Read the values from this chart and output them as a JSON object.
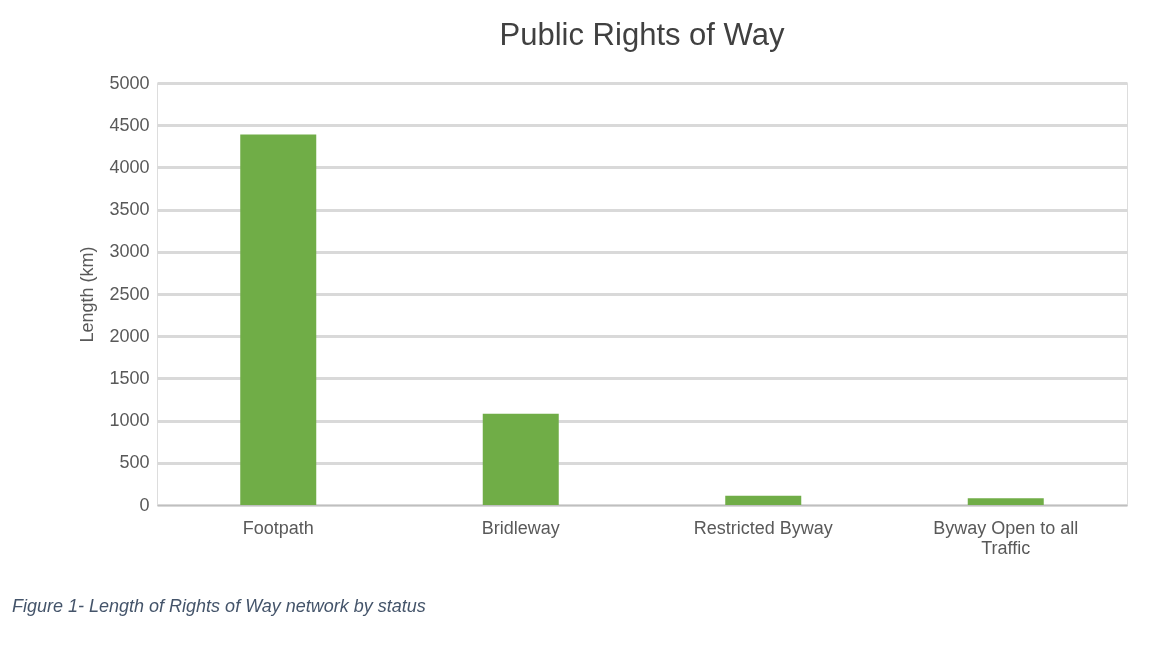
{
  "chart_data": {
    "type": "bar",
    "title": "Public Rights of Way",
    "ylabel": "Length (km)",
    "categories": [
      "Footpath",
      "Bridleway",
      "Restricted Byway",
      "Byway Open to all Traffic"
    ],
    "values": [
      4390,
      1080,
      110,
      80
    ],
    "color": "#70ad47",
    "ylim": [
      0,
      5000
    ],
    "yticks": [
      0,
      500,
      1000,
      1500,
      2000,
      2500,
      3000,
      3500,
      4000,
      4500,
      5000
    ],
    "grid": "y",
    "annotations": [
      "Figure 1- Length of Rights of Way network by status"
    ]
  }
}
